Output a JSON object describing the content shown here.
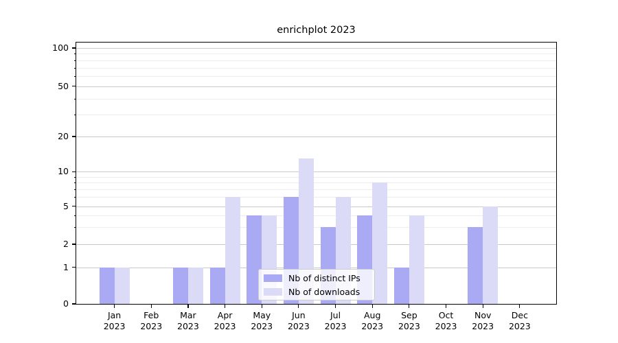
{
  "title": "enrichplot 2023",
  "legend": {
    "items": [
      {
        "label": "Nb of distinct IPs",
        "color": "#a9a9f4"
      },
      {
        "label": "Nb of downloads",
        "color": "#dbdbf8"
      }
    ]
  },
  "y_axis": {
    "tick_values": [
      100,
      50,
      20,
      10,
      5,
      2,
      1,
      0
    ]
  },
  "x_axis": {
    "months": [
      "Jan",
      "Feb",
      "Mar",
      "Apr",
      "May",
      "Jun",
      "Jul",
      "Aug",
      "Sep",
      "Oct",
      "Nov",
      "Dec"
    ],
    "year": "2023"
  },
  "colors": {
    "series_ips": "#a9a9f4",
    "series_downloads": "#dbdbf8",
    "grid_major": "#c9c9c9",
    "grid_minor": "#ededed",
    "spine": "#000000"
  },
  "chart_data": {
    "type": "bar",
    "title": "enrichplot 2023",
    "categories": [
      "Jan 2023",
      "Feb 2023",
      "Mar 2023",
      "Apr 2023",
      "May 2023",
      "Jun 2023",
      "Jul 2023",
      "Aug 2023",
      "Sep 2023",
      "Oct 2023",
      "Nov 2023",
      "Dec 2023"
    ],
    "series": [
      {
        "name": "Nb of distinct IPs",
        "values": [
          1,
          0,
          1,
          1,
          4,
          6,
          3,
          4,
          1,
          0,
          3,
          0
        ]
      },
      {
        "name": "Nb of downloads",
        "values": [
          1,
          0,
          1,
          6,
          4,
          13,
          6,
          8,
          4,
          0,
          5,
          0
        ]
      }
    ],
    "yscale": "log",
    "y_ticks": [
      0,
      1,
      2,
      5,
      10,
      20,
      50,
      100
    ],
    "ylim": [
      0,
      110
    ],
    "grid": "major and minor horizontal gridlines",
    "legend_position": "lower center"
  }
}
